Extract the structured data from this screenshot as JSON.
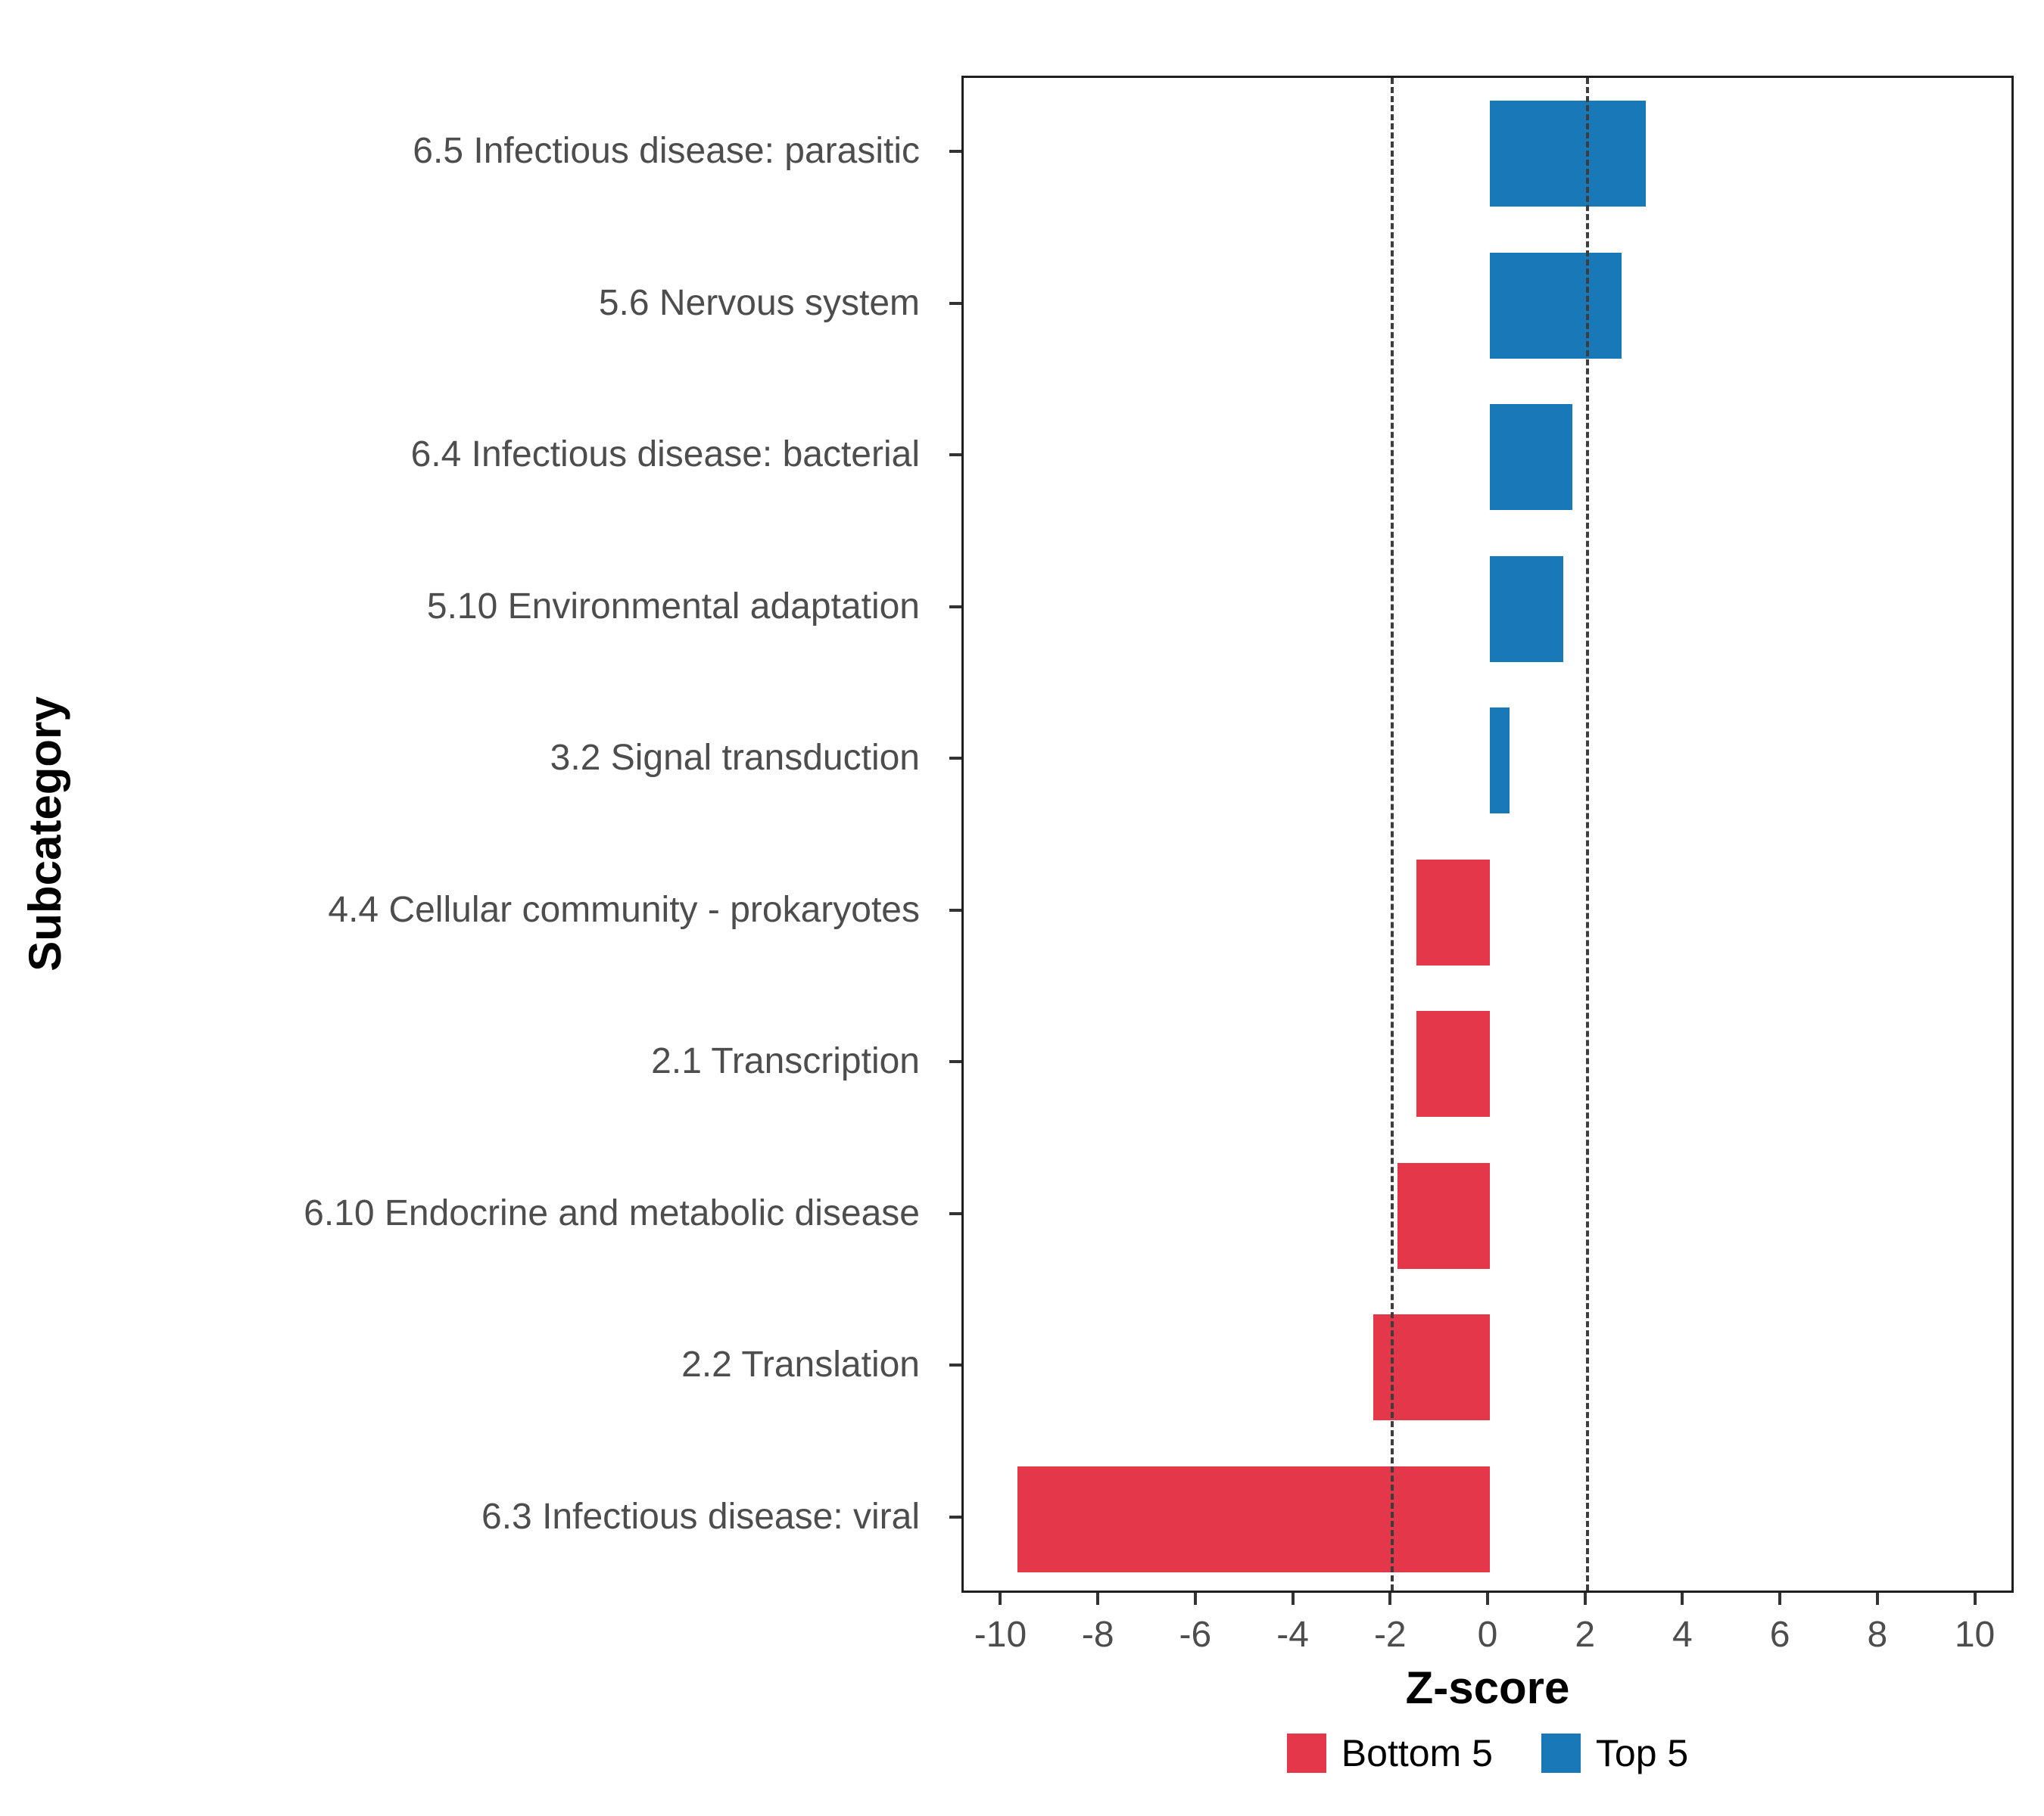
{
  "chart_data": {
    "type": "bar",
    "orientation": "horizontal",
    "title": "",
    "xlabel": "Z-score",
    "ylabel": "Subcategory",
    "xlim": [
      -10.8,
      10.8
    ],
    "x_ticks": [
      -10,
      -8,
      -6,
      -4,
      -2,
      0,
      2,
      4,
      6,
      8,
      10
    ],
    "reference_lines": [
      -2,
      2
    ],
    "grid": false,
    "legend_position": "bottom",
    "categories": [
      "6.5 Infectious disease: parasitic",
      "5.6 Nervous system",
      "6.4 Infectious disease: bacterial",
      "5.10 Environmental adaptation",
      "3.2 Signal transduction",
      "4.4 Cellular community - prokaryotes",
      "2.1 Transcription",
      "6.10 Endocrine and metabolic disease",
      "2.2 Translation",
      "6.3 Infectious disease: viral"
    ],
    "values": [
      3.2,
      2.7,
      1.7,
      1.5,
      0.4,
      -1.5,
      -1.5,
      -1.9,
      -2.4,
      -9.7
    ],
    "groups": [
      "Top 5",
      "Top 5",
      "Top 5",
      "Top 5",
      "Top 5",
      "Bottom 5",
      "Bottom 5",
      "Bottom 5",
      "Bottom 5",
      "Bottom 5"
    ],
    "colors": {
      "Bottom 5": "#E4384A",
      "Top 5": "#1878B8"
    },
    "legend": [
      {
        "label": "Bottom 5",
        "group": "Bottom 5"
      },
      {
        "label": "Top 5",
        "group": "Top 5"
      }
    ]
  }
}
